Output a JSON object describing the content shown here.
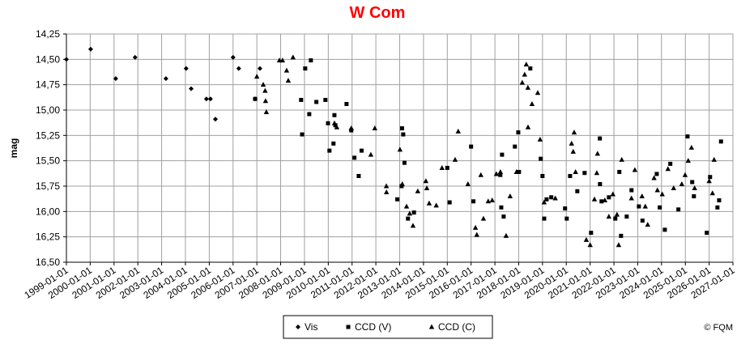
{
  "chart_data": {
    "type": "scatter",
    "title": "W Com",
    "y_label": "mag",
    "credit": "© FQM",
    "y_reversed": true,
    "grid": true,
    "legend_position": "bottom",
    "xlim": [
      "1999-01-01",
      "2027-01-01"
    ],
    "xticks": [
      "1999-01-01",
      "2000-01-01",
      "2001-01-01",
      "2002-01-01",
      "2003-01-01",
      "2004-01-01",
      "2005-01-01",
      "2006-01-01",
      "2007-01-01",
      "2008-01-01",
      "2009-01-01",
      "2010-01-01",
      "2011-01-01",
      "2012-01-01",
      "2013-01-01",
      "2014-01-01",
      "2015-01-01",
      "2016-01-01",
      "2017-01-01",
      "2018-01-01",
      "2019-01-01",
      "2020-01-01",
      "2021-01-01",
      "2022-01-01",
      "2023-01-01",
      "2024-01-01",
      "2025-01-01",
      "2026-01-01",
      "2027-01-01"
    ],
    "ylim": [
      14.25,
      16.5
    ],
    "yticks": [
      {
        "value": 14.25,
        "label": "14,25"
      },
      {
        "value": 14.5,
        "label": "14,50"
      },
      {
        "value": 14.75,
        "label": "14,75"
      },
      {
        "value": 15,
        "label": "15,00"
      },
      {
        "value": 15.25,
        "label": "15,25"
      },
      {
        "value": 15.5,
        "label": "15,50"
      },
      {
        "value": 15.75,
        "label": "15,75"
      },
      {
        "value": 16,
        "label": "16,00"
      },
      {
        "value": 16.25,
        "label": "16,25"
      },
      {
        "value": 16.5,
        "label": "16,50"
      }
    ],
    "series": [
      {
        "name": "Vis",
        "marker": "diamond",
        "color": "#000000",
        "x": [
          "1999-01-01",
          "2000-01-08",
          "2001-01-27",
          "2001-11-20",
          "2003-03-08",
          "2004-01-12",
          "2004-03-29",
          "2004-11-18",
          "2005-01-19",
          "2005-04-05",
          "2006-01-01",
          "2006-03-29",
          "2006-12-05",
          "2007-02-17"
        ],
        "values": [
          14.5,
          14.4,
          14.69,
          14.48,
          14.69,
          14.59,
          14.79,
          14.89,
          14.89,
          15.09,
          14.48,
          14.59,
          14.89,
          14.59
        ]
      },
      {
        "name": "CCD (V)",
        "marker": "square",
        "color": "#000000",
        "x": [
          "2006-12-06",
          "2008-11-10",
          "2008-11-25",
          "2009-01-12",
          "2009-03-15",
          "2009-04-09",
          "2009-07-02",
          "2009-11-18",
          "2009-12-28",
          "2010-01-19",
          "2010-03-22",
          "2010-04-05",
          "2010-04-20",
          "2010-10-08",
          "2010-12-20",
          "2011-02-06",
          "2011-04-13",
          "2011-05-27",
          "2012-11-25",
          "2013-01-30",
          "2013-02-06",
          "2013-02-24",
          "2013-03-15",
          "2013-05-08",
          "2013-08-08",
          "2015-01-01",
          "2015-02-06",
          "2016-01-01",
          "2016-02-06",
          "2017-03-25",
          "2017-04-08",
          "2017-04-20",
          "2017-05-15",
          "2017-11-03",
          "2017-12-25",
          "2018-01-05",
          "2018-06-28",
          "2018-12-05",
          "2019-01-01",
          "2019-01-27",
          "2019-03-05",
          "2019-05-15",
          "2019-12-13",
          "2020-01-08",
          "2020-02-28",
          "2020-06-18",
          "2020-10-08",
          "2021-01-15",
          "2021-05-30",
          "2021-06-01",
          "2021-06-25",
          "2021-10-16",
          "2022-01-22",
          "2022-03-25",
          "2022-04-20",
          "2022-07-16",
          "2022-09-28",
          "2023-01-19",
          "2023-03-15",
          "2023-10-20",
          "2023-12-05",
          "2024-02-21",
          "2024-05-15",
          "2024-09-16",
          "2025-02-03",
          "2025-04-16",
          "2025-05-12",
          "2025-11-25",
          "2026-01-15",
          "2026-05-08",
          "2026-06-03",
          "2026-07-02"
        ],
        "values": [
          14.89,
          14.9,
          15.24,
          14.59,
          15.04,
          14.51,
          14.92,
          14.9,
          15.13,
          15.4,
          15.33,
          15.05,
          15.15,
          14.94,
          15.2,
          15.47,
          15.65,
          15.4,
          15.88,
          15.75,
          15.18,
          15.24,
          15.52,
          16.07,
          16.01,
          15.57,
          15.91,
          15.36,
          15.9,
          15.64,
          15.96,
          15.44,
          16.05,
          15.36,
          15.22,
          15.61,
          14.59,
          15.48,
          15.65,
          16.07,
          15.88,
          15.86,
          15.97,
          16.07,
          15.65,
          15.8,
          15.62,
          16.21,
          15.28,
          15.73,
          15.9,
          15.86,
          16.07,
          15.61,
          16.24,
          16.05,
          15.79,
          15.95,
          16.09,
          15.63,
          15.96,
          16.18,
          15.53,
          15.98,
          15.26,
          15.71,
          15.85,
          16.21,
          15.66,
          15.96,
          15.89,
          15.31
        ]
      },
      {
        "name": "CCD (C)",
        "marker": "triangle",
        "color": "#000000",
        "x": [
          "2007-01-01",
          "2007-04-09",
          "2007-05-08",
          "2007-05-15",
          "2007-05-27",
          "2007-12-13",
          "2008-01-30",
          "2008-04-02",
          "2008-04-27",
          "2008-07-09",
          "2010-04-06",
          "2010-05-12",
          "2010-12-20",
          "2011-10-16",
          "2011-12-16",
          "2012-06-10",
          "2012-06-12",
          "2013-01-05",
          "2013-02-10",
          "2013-04-16",
          "2013-06-03",
          "2013-07-24",
          "2013-10-05",
          "2014-02-06",
          "2014-02-21",
          "2014-03-29",
          "2014-07-16",
          "2014-10-12",
          "2015-05-01",
          "2015-06-18",
          "2015-11-14",
          "2016-03-08",
          "2016-03-29",
          "2016-05-30",
          "2016-07-09",
          "2016-09-20",
          "2016-11-20",
          "2017-01-23",
          "2017-03-26",
          "2017-06-21",
          "2017-08-22",
          "2017-11-28",
          "2018-02-24",
          "2018-04-02",
          "2018-04-27",
          "2018-05-22",
          "2018-05-24",
          "2018-07-24",
          "2018-10-20",
          "2018-11-25",
          "2019-01-26",
          "2019-07-16",
          "2020-03-22",
          "2020-04-16",
          "2020-05-01",
          "2020-05-22",
          "2020-11-03",
          "2021-01-01",
          "2021-03-08",
          "2021-04-13",
          "2021-04-24",
          "2021-08-15",
          "2021-10-15",
          "2021-12-16",
          "2022-02-17",
          "2022-03-15",
          "2022-05-01",
          "2022-09-27",
          "2022-11-18",
          "2023-03-08",
          "2023-04-27",
          "2023-06-03",
          "2023-09-09",
          "2023-10-30",
          "2024-01-12",
          "2024-04-09",
          "2024-07-05",
          "2024-11-07",
          "2024-12-28",
          "2025-02-14",
          "2025-04-05",
          "2025-05-23",
          "2026-01-01",
          "2026-02-21",
          "2026-03-18"
        ],
        "values": [
          14.67,
          14.75,
          14.81,
          14.91,
          15.02,
          14.51,
          14.51,
          14.61,
          14.71,
          14.48,
          15.13,
          15.17,
          15.18,
          15.44,
          15.18,
          15.75,
          15.81,
          15.39,
          15.73,
          15.95,
          16.02,
          16.14,
          15.8,
          15.7,
          15.77,
          15.92,
          15.94,
          15.57,
          15.49,
          15.21,
          15.73,
          16.16,
          16.23,
          15.64,
          16.07,
          15.9,
          15.89,
          15.63,
          15.61,
          16.24,
          15.85,
          15.61,
          14.73,
          14.65,
          14.55,
          14.78,
          15.17,
          14.94,
          14.83,
          15.29,
          15.91,
          15.87,
          15.33,
          15.41,
          15.22,
          15.61,
          16.28,
          16.33,
          15.88,
          15.62,
          15.43,
          15.89,
          16.05,
          15.83,
          16.03,
          16.33,
          15.49,
          15.87,
          15.59,
          15.85,
          15.95,
          16.13,
          15.67,
          15.79,
          15.83,
          15.58,
          15.77,
          15.73,
          15.64,
          15.5,
          15.37,
          15.77,
          15.7,
          15.82,
          15.49
        ]
      }
    ]
  }
}
